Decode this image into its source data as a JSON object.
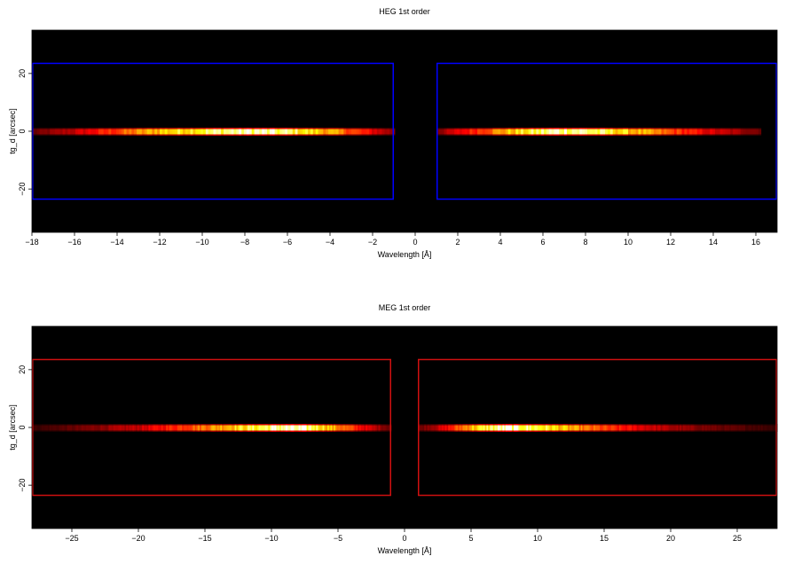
{
  "chart_data": [
    {
      "type": "heatmap",
      "title": "HEG 1st order",
      "xlabel": "Wavelength [Å]",
      "ylabel": "tg_d [arcsec]",
      "xlim": [
        -18,
        17
      ],
      "ylim": [
        -35,
        35
      ],
      "xticks": [
        -18,
        -16,
        -14,
        -12,
        -10,
        -8,
        -6,
        -4,
        -2,
        0,
        2,
        4,
        6,
        8,
        10,
        12,
        14,
        16
      ],
      "yticks": [
        -20,
        0,
        20
      ],
      "grid": false,
      "colormap": "hot",
      "background_color": "#000000",
      "box_color": "#0000ff",
      "boxes": [
        {
          "x": [
            -18,
            -1
          ],
          "y": [
            -23.5,
            23.5
          ]
        },
        {
          "x": [
            1,
            17
          ],
          "y": [
            -23.5,
            23.5
          ]
        }
      ],
      "traces": [
        {
          "x": [
            -18,
            -1
          ],
          "y": 0,
          "peak_x": -8,
          "profile": [
            [
              -18,
              0.15
            ],
            [
              -16,
              0.3
            ],
            [
              -14,
              0.5
            ],
            [
              -12,
              0.72
            ],
            [
              -10,
              0.86
            ],
            [
              -8,
              0.97
            ],
            [
              -6,
              0.88
            ],
            [
              -4,
              0.65
            ],
            [
              -2,
              0.35
            ],
            [
              -1,
              0.2
            ]
          ]
        },
        {
          "x": [
            1,
            16.2
          ],
          "y": 0,
          "peak_x": 7,
          "profile": [
            [
              1,
              0.2
            ],
            [
              2,
              0.35
            ],
            [
              4,
              0.65
            ],
            [
              6,
              0.9
            ],
            [
              7,
              0.98
            ],
            [
              8,
              0.92
            ],
            [
              10,
              0.72
            ],
            [
              12,
              0.5
            ],
            [
              14,
              0.32
            ],
            [
              16.2,
              0.18
            ]
          ]
        }
      ]
    },
    {
      "type": "heatmap",
      "title": "MEG 1st order",
      "xlabel": "Wavelength [Å]",
      "ylabel": "tg_d [arcsec]",
      "xlim": [
        -28,
        28
      ],
      "ylim": [
        -35,
        35
      ],
      "xticks": [
        -25,
        -20,
        -15,
        -10,
        -5,
        0,
        5,
        10,
        15,
        20,
        25
      ],
      "yticks": [
        -20,
        0,
        20
      ],
      "grid": false,
      "colormap": "hot",
      "background_color": "#000000",
      "box_color": "#d01010",
      "boxes": [
        {
          "x": [
            -28,
            -1
          ],
          "y": [
            -23.5,
            23.5
          ]
        },
        {
          "x": [
            1,
            28
          ],
          "y": [
            -23.5,
            23.5
          ]
        }
      ],
      "traces": [
        {
          "x": [
            -28,
            -1
          ],
          "y": 0,
          "peak_x": -9,
          "profile": [
            [
              -28,
              0.08
            ],
            [
              -25,
              0.15
            ],
            [
              -20,
              0.3
            ],
            [
              -15,
              0.6
            ],
            [
              -12,
              0.8
            ],
            [
              -9,
              0.97
            ],
            [
              -7,
              0.9
            ],
            [
              -5,
              0.6
            ],
            [
              -3,
              0.35
            ],
            [
              -1,
              0.15
            ]
          ]
        },
        {
          "x": [
            1,
            28
          ],
          "y": 0,
          "peak_x": 7.5,
          "profile": [
            [
              1,
              0.15
            ],
            [
              3,
              0.35
            ],
            [
              5,
              0.7
            ],
            [
              7.5,
              0.99
            ],
            [
              10,
              0.85
            ],
            [
              13,
              0.6
            ],
            [
              16,
              0.42
            ],
            [
              20,
              0.25
            ],
            [
              24,
              0.15
            ],
            [
              28,
              0.08
            ]
          ]
        }
      ]
    }
  ]
}
